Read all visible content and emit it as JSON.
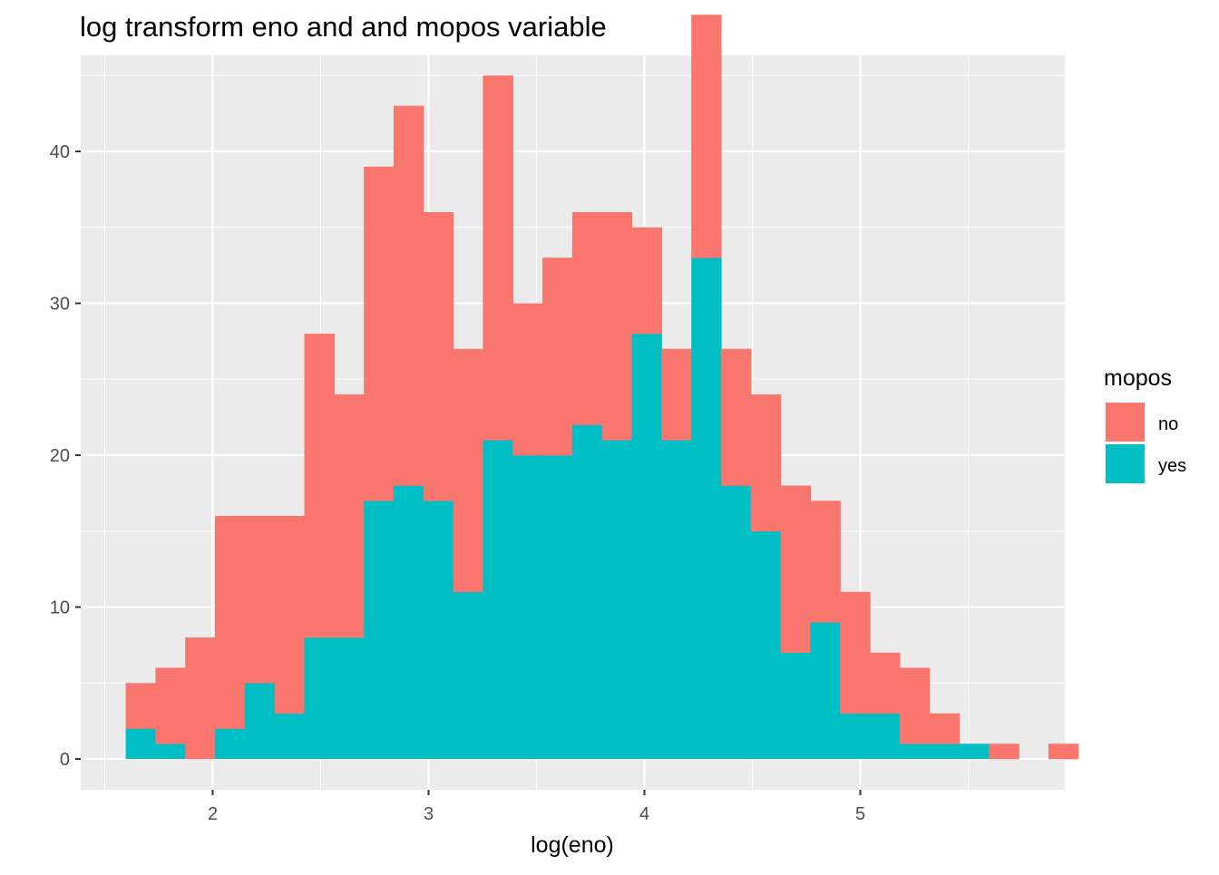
{
  "chart_data": {
    "type": "bar",
    "subtype": "stacked-histogram",
    "title": "log transform eno and and mopos variable",
    "xlabel": "log(eno)",
    "ylabel": "",
    "xlim": [
      1.5,
      5.8
    ],
    "ylim": [
      -2,
      46
    ],
    "x_ticks": [
      2,
      3,
      4,
      5
    ],
    "x_tick_labels": [
      "2",
      "3",
      "4",
      "5"
    ],
    "y_ticks": [
      0,
      10,
      20,
      30,
      40
    ],
    "y_tick_labels": [
      "0",
      "10",
      "20",
      "30",
      "40"
    ],
    "bin_width": 0.1379,
    "bin_start": 1.5971,
    "grid": true,
    "legend": {
      "title": "mopos",
      "position": "right"
    },
    "series": [
      {
        "name": "no",
        "color": "#F8766D",
        "values": [
          3,
          5,
          8,
          14,
          11,
          13,
          20,
          16,
          22,
          25,
          19,
          16,
          24,
          10,
          13,
          14,
          15,
          7,
          6,
          16,
          9,
          9,
          11,
          8,
          8,
          4,
          5,
          2,
          0,
          1,
          0,
          1
        ]
      },
      {
        "name": "yes",
        "color": "#00BFC4",
        "values": [
          2,
          1,
          0,
          2,
          5,
          3,
          8,
          8,
          17,
          18,
          17,
          11,
          21,
          20,
          20,
          22,
          21,
          28,
          21,
          33,
          18,
          15,
          7,
          9,
          3,
          3,
          1,
          1,
          1,
          0,
          0,
          0
        ]
      }
    ]
  }
}
